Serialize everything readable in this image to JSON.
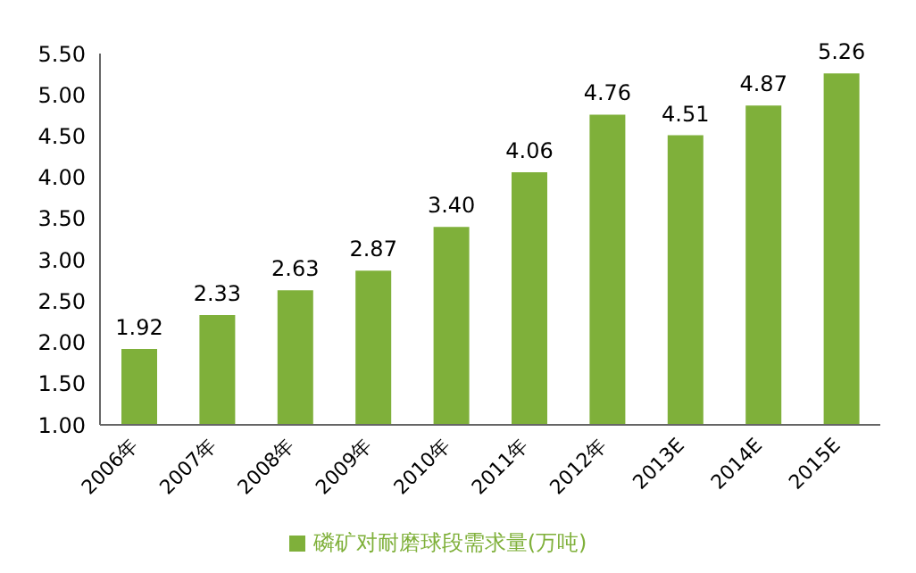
{
  "chart_data": {
    "type": "bar",
    "categories": [
      "2006年",
      "2007年",
      "2008年",
      "2009年",
      "2010年",
      "2011年",
      "2012年",
      "2013E",
      "2014E",
      "2015E"
    ],
    "series": [
      {
        "name": "磷矿对耐磨球段需求量(万吨)",
        "color": "#7fb03a",
        "values": [
          1.92,
          2.33,
          2.63,
          2.87,
          3.4,
          4.06,
          4.76,
          4.51,
          4.87,
          5.26
        ]
      }
    ],
    "value_labels": [
      "1.92",
      "2.33",
      "2.63",
      "2.87",
      "3.40",
      "4.06",
      "4.76",
      "4.51",
      "4.87",
      "5.26"
    ],
    "ylim": [
      1,
      5.5
    ],
    "yticks": [
      {
        "value": 1,
        "label": "1.00"
      },
      {
        "value": 1.5,
        "label": "1.50"
      },
      {
        "value": 2,
        "label": "2.00"
      },
      {
        "value": 2.5,
        "label": "2.50"
      },
      {
        "value": 3,
        "label": "3.00"
      },
      {
        "value": 3.5,
        "label": "3.50"
      },
      {
        "value": 4,
        "label": "4.00"
      },
      {
        "value": 4.5,
        "label": "4.50"
      },
      {
        "value": 5,
        "label": "5.00"
      },
      {
        "value": 5.5,
        "label": "5.50"
      }
    ],
    "grid": false,
    "legend": "bottom"
  }
}
